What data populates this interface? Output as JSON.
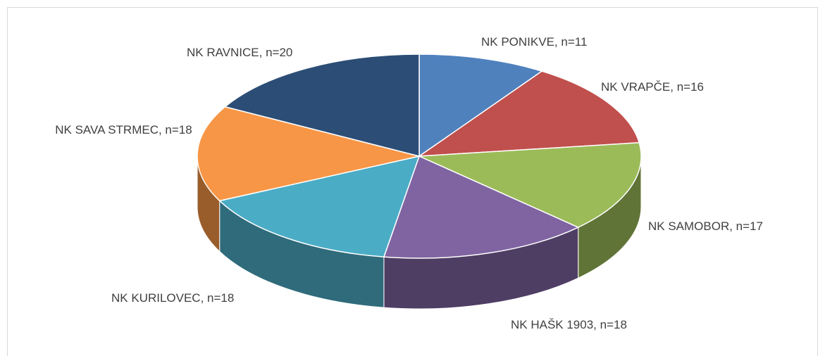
{
  "chart_data": {
    "type": "pie3d",
    "values": [
      11,
      16,
      17,
      18,
      18,
      18,
      20
    ],
    "value_labels": [
      "NK PONIKVE, n=11",
      "NK VRAPČE, n=16",
      "NK SAMOBOR, n=17",
      "NK HAŠK 1903, n=18",
      "NK KURILOVEC, n=18",
      "NK SAVA STRMEC, n=18",
      "NK RAVNICE, n=20"
    ],
    "colors": [
      "#4f81bd",
      "#c0504d",
      "#9bbb59",
      "#8064a2",
      "#4bacc6",
      "#f79646",
      "#2c4d75"
    ]
  }
}
